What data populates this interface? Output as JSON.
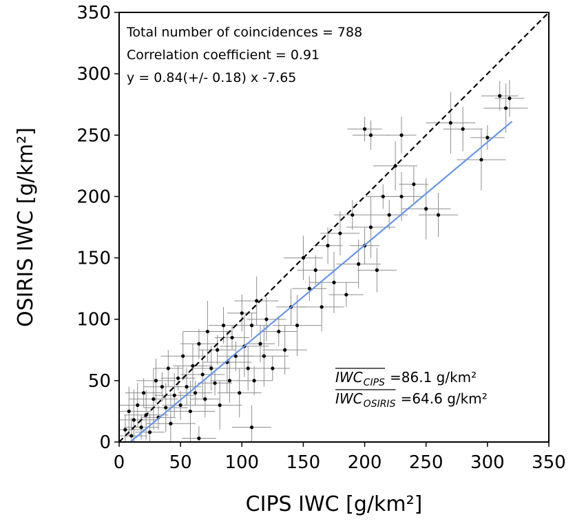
{
  "chart_data": {
    "type": "scatter",
    "x_label": "CIPS IWC [g/km²]",
    "y_label": "OSIRIS IWC [g/km²]",
    "xlim": [
      0,
      350
    ],
    "ylim": [
      0,
      350
    ],
    "xticks": [
      0,
      50,
      100,
      150,
      200,
      250,
      300,
      350
    ],
    "yticks": [
      0,
      50,
      100,
      150,
      200,
      250,
      300,
      350
    ],
    "annotations": [
      "Total number of coincidences = 788",
      "Correlation coefficient = 0.91",
      "y = 0.84(+/- 0.18) x -7.65"
    ],
    "mean_labels": [
      {
        "symbol": "IWC",
        "subscript": "CIPS",
        "text": "=86.1 g/km²"
      },
      {
        "symbol": "IWC",
        "subscript": "OSIRIS",
        "text": "=64.6 g/km²"
      }
    ],
    "lines": [
      {
        "x": [
          0,
          350
        ],
        "y": [
          0,
          350
        ],
        "color": "#000000",
        "dashed": true
      },
      {
        "x": [
          9.1,
          320
        ],
        "y": [
          0,
          261.15
        ],
        "color": "#6495ed",
        "dashed": false
      }
    ],
    "series": [
      {
        "color": "#000000",
        "error_color": "#8c8c8c",
        "x": [
          5,
          8,
          10,
          12,
          15,
          18,
          20,
          22,
          25,
          28,
          30,
          32,
          35,
          38,
          40,
          42,
          45,
          48,
          50,
          52,
          55,
          58,
          60,
          62,
          65,
          68,
          70,
          72,
          75,
          78,
          80,
          82,
          85,
          88,
          90,
          92,
          95,
          98,
          100,
          102,
          105,
          108,
          110,
          112,
          115,
          118,
          120,
          125,
          130,
          135,
          140,
          145,
          150,
          155,
          160,
          165,
          170,
          175,
          180,
          185,
          190,
          195,
          200,
          205,
          210,
          215,
          220,
          230,
          240,
          250,
          260,
          200,
          205,
          225,
          230,
          270,
          280,
          300,
          310,
          315,
          318,
          295,
          108,
          65
        ],
        "values": [
          10,
          25,
          5,
          18,
          30,
          12,
          40,
          22,
          8,
          35,
          50,
          20,
          45,
          28,
          60,
          15,
          38,
          52,
          30,
          70,
          45,
          25,
          62,
          40,
          80,
          55,
          35,
          90,
          60,
          48,
          75,
          30,
          95,
          65,
          50,
          85,
          70,
          40,
          105,
          78,
          60,
          95,
          50,
          115,
          80,
          70,
          100,
          60,
          90,
          75,
          110,
          95,
          150,
          125,
          140,
          110,
          160,
          130,
          170,
          120,
          185,
          145,
          160,
          175,
          140,
          200,
          185,
          200,
          210,
          190,
          185,
          255,
          250,
          225,
          250,
          260,
          255,
          248,
          282,
          272,
          280,
          230,
          12,
          3
        ],
        "xerr": [
          15,
          18,
          12,
          20,
          16,
          14,
          15,
          18,
          12,
          20,
          16,
          14,
          15,
          18,
          12,
          20,
          16,
          14,
          15,
          18,
          12,
          20,
          16,
          14,
          15,
          18,
          12,
          20,
          16,
          14,
          15,
          18,
          12,
          20,
          16,
          14,
          15,
          18,
          12,
          20,
          16,
          14,
          15,
          18,
          12,
          20,
          16,
          14,
          15,
          18,
          12,
          20,
          16,
          14,
          15,
          18,
          12,
          20,
          16,
          14,
          15,
          18,
          12,
          20,
          16,
          14,
          15,
          18,
          12,
          20,
          16,
          14,
          15,
          18,
          12,
          20,
          16,
          14,
          15,
          18,
          12,
          20,
          16,
          14
        ],
        "yerr": [
          12,
          20,
          15,
          25,
          18,
          10,
          12,
          20,
          15,
          25,
          18,
          10,
          12,
          20,
          15,
          25,
          18,
          10,
          12,
          20,
          15,
          25,
          18,
          10,
          12,
          20,
          15,
          25,
          18,
          10,
          12,
          20,
          15,
          25,
          18,
          10,
          12,
          20,
          15,
          25,
          18,
          10,
          12,
          20,
          15,
          25,
          18,
          10,
          12,
          20,
          15,
          25,
          18,
          10,
          12,
          20,
          15,
          25,
          18,
          10,
          12,
          20,
          15,
          25,
          18,
          10,
          12,
          20,
          15,
          25,
          18,
          10,
          12,
          20,
          15,
          25,
          18,
          10,
          12,
          20,
          15,
          25,
          18,
          10
        ]
      }
    ]
  }
}
